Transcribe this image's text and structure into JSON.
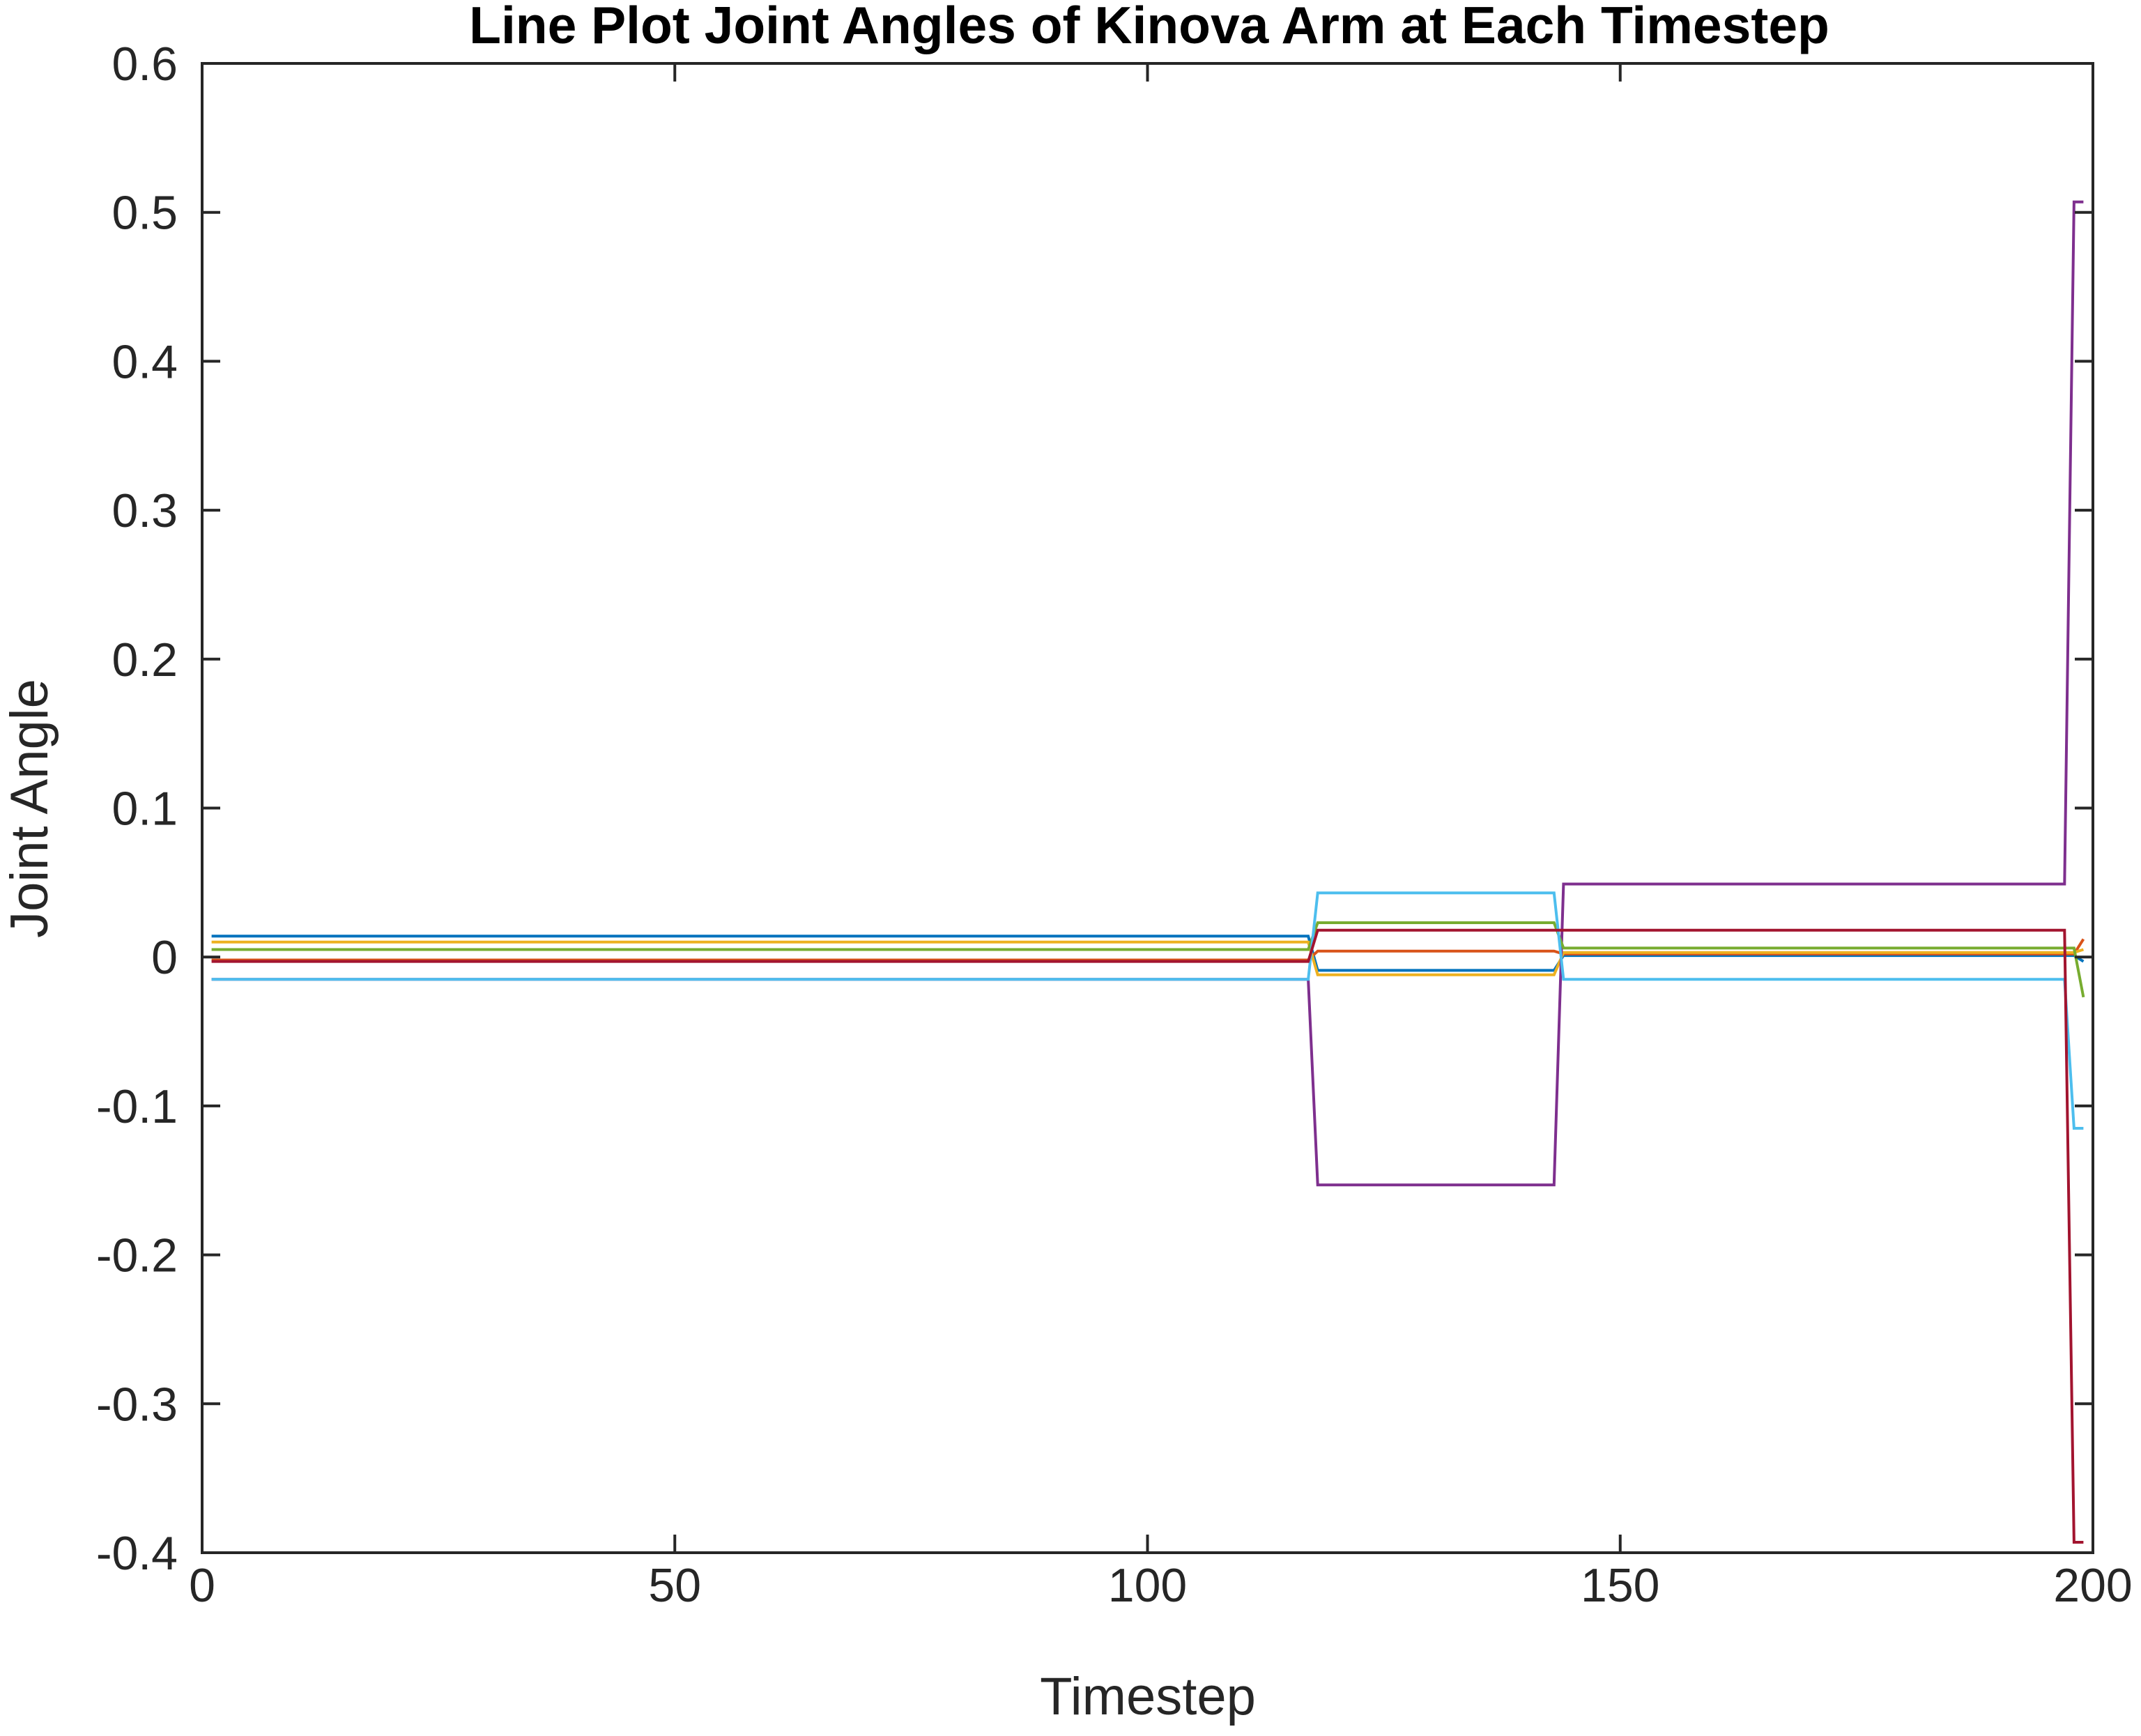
{
  "chart_data": {
    "type": "line",
    "title": "Line Plot Joint Angles of Kinova Arm at Each Timestep",
    "xlabel": "Timestep",
    "ylabel": "Joint Angle",
    "xlim": [
      0,
      200
    ],
    "ylim": [
      -0.4,
      0.6
    ],
    "xticks": [
      0,
      50,
      100,
      150,
      200
    ],
    "xtick_labels": [
      "0",
      "50",
      "100",
      "150",
      "200"
    ],
    "yticks": [
      -0.4,
      -0.3,
      -0.2,
      -0.1,
      0,
      0.1,
      0.2,
      0.3,
      0.4,
      0.5,
      0.6
    ],
    "ytick_labels": [
      "-0.4",
      "-0.3",
      "-0.2",
      "-0.1",
      "0",
      "0.1",
      "0.2",
      "0.3",
      "0.4",
      "0.5",
      "0.6"
    ],
    "grid": false,
    "legend": "none",
    "series": [
      {
        "color": "#0072BD",
        "x": [
          1,
          117,
          118,
          143,
          144,
          198,
          199
        ],
        "y": [
          0.014,
          0.014,
          -0.009,
          -0.009,
          0.001,
          0.001,
          -0.003
        ]
      },
      {
        "color": "#D95319",
        "x": [
          1,
          117,
          118,
          143,
          144,
          198,
          199
        ],
        "y": [
          -0.002,
          -0.002,
          0.004,
          0.004,
          0.002,
          0.002,
          0.012
        ]
      },
      {
        "color": "#EDB120",
        "x": [
          1,
          117,
          118,
          143,
          144,
          198,
          199
        ],
        "y": [
          0.01,
          0.01,
          -0.012,
          -0.012,
          0.003,
          0.003,
          0.005
        ]
      },
      {
        "color": "#7E2F8E",
        "x": [
          1,
          117,
          118,
          143,
          144,
          197,
          198,
          199
        ],
        "y": [
          -0.015,
          -0.015,
          -0.153,
          -0.153,
          0.049,
          0.049,
          0.507,
          0.507
        ]
      },
      {
        "color": "#77AC30",
        "x": [
          1,
          117,
          118,
          143,
          144,
          198,
          199
        ],
        "y": [
          0.005,
          0.005,
          0.023,
          0.023,
          0.006,
          0.006,
          -0.027
        ]
      },
      {
        "color": "#4DBEEE",
        "x": [
          1,
          117,
          118,
          143,
          144,
          197,
          198,
          199
        ],
        "y": [
          -0.015,
          -0.015,
          0.043,
          0.043,
          -0.015,
          -0.015,
          -0.115,
          -0.115
        ]
      },
      {
        "color": "#A2142F",
        "x": [
          1,
          117,
          118,
          143,
          144,
          197,
          198,
          199
        ],
        "y": [
          -0.003,
          -0.003,
          0.018,
          0.018,
          0.018,
          0.018,
          -0.393,
          -0.393
        ]
      }
    ]
  }
}
